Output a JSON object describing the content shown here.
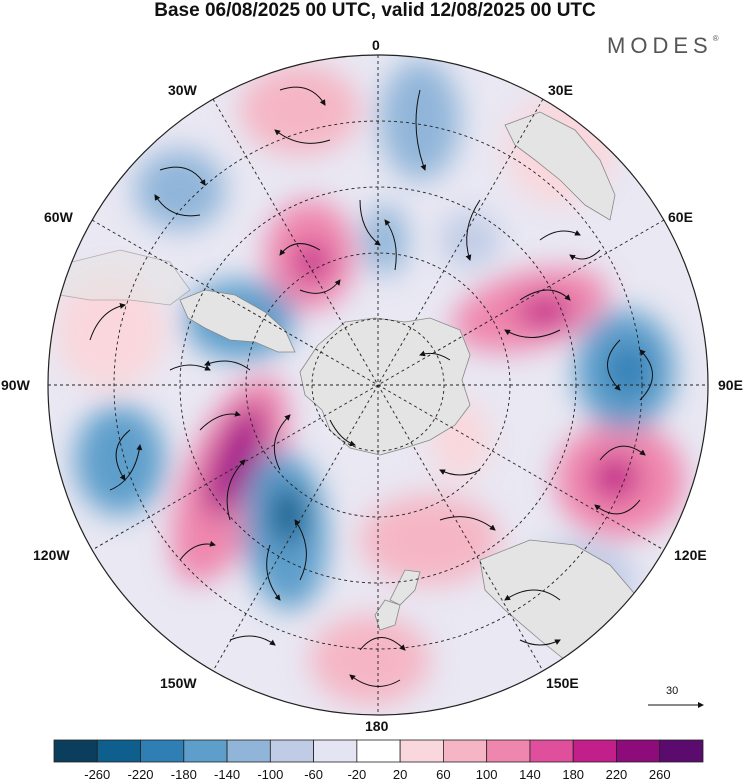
{
  "title": "Base 06/08/2025 00 UTC, valid 12/08/2025 00 UTC",
  "brand": {
    "name": "MODES",
    "mark": "®"
  },
  "map": {
    "projection": "south-polar-stereographic",
    "longitude_labels": [
      "0",
      "30E",
      "60E",
      "90E",
      "120E",
      "150E",
      "180",
      "150W",
      "120W",
      "90W",
      "60W",
      "30W"
    ],
    "land_color": "#e4e4e4",
    "anomaly_centers": [
      {
        "name": "high-south-america-west",
        "value": 240
      },
      {
        "name": "high-indian-ocean",
        "value": 180
      },
      {
        "name": "high-south-pacific",
        "value": 200
      },
      {
        "name": "low-pacific",
        "value": -180
      },
      {
        "name": "low-indian-ocean-east",
        "value": -150
      },
      {
        "name": "low-south-atlantic",
        "value": -120
      },
      {
        "name": "low-drake-passage",
        "value": -140
      },
      {
        "name": "low-southeast-pacific",
        "value": -120
      }
    ]
  },
  "wind_reference": {
    "label": "30"
  },
  "colorbar": {
    "labels": [
      "-260",
      "-220",
      "-180",
      "-140",
      "-100",
      "-60",
      "-20",
      "20",
      "60",
      "100",
      "140",
      "180",
      "220",
      "260"
    ],
    "colors": [
      "#0b3d5c",
      "#0f5f8e",
      "#2f7fb5",
      "#5d9ecb",
      "#90b5d9",
      "#c0cce6",
      "#e5e4f2",
      "#ffffff",
      "#f9d7dc",
      "#f5b5c4",
      "#ef86ad",
      "#e04f9c",
      "#c21f8a",
      "#8e0b7c",
      "#5b0a6e"
    ]
  }
}
